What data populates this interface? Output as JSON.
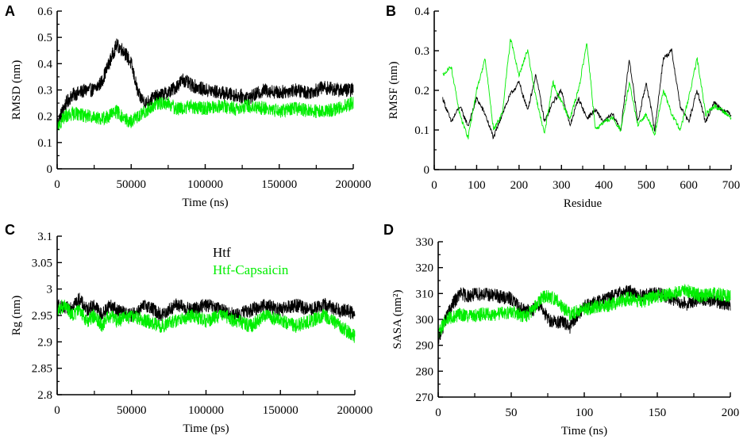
{
  "figure": {
    "colors": {
      "htf": "#000000",
      "htf_capsaicin": "#00ee00",
      "axis": "#000000"
    },
    "legend": {
      "htf": "Htf",
      "htf_capsaicin": "Htf-Capsaicin"
    }
  },
  "chart_data": [
    {
      "panel": "A",
      "type": "line",
      "xlabel": "Time (ns)",
      "ylabel": "RMSD (nm)",
      "xlim": [
        0,
        200000
      ],
      "ylim": [
        0,
        0.6
      ],
      "xticks": [
        0,
        50000,
        100000,
        150000,
        200000
      ],
      "xtick_labels": [
        "0",
        "50000",
        "100000",
        "150000",
        "200000"
      ],
      "yticks": [
        0,
        0.1,
        0.2,
        0.3,
        0.4,
        0.5,
        0.6
      ],
      "ytick_labels": [
        "0",
        "0.1",
        "0.2",
        "0.3",
        "0.4",
        "0.5",
        "0.6"
      ],
      "series": [
        {
          "name": "Htf",
          "x": [
            0,
            5000,
            10000,
            15000,
            20000,
            25000,
            30000,
            35000,
            40000,
            45000,
            50000,
            55000,
            60000,
            65000,
            70000,
            75000,
            80000,
            85000,
            90000,
            95000,
            100000,
            110000,
            120000,
            130000,
            140000,
            150000,
            160000,
            170000,
            180000,
            190000,
            200000
          ],
          "y": [
            0.17,
            0.24,
            0.28,
            0.29,
            0.3,
            0.3,
            0.33,
            0.4,
            0.47,
            0.45,
            0.4,
            0.28,
            0.25,
            0.27,
            0.28,
            0.29,
            0.31,
            0.34,
            0.32,
            0.31,
            0.3,
            0.29,
            0.28,
            0.27,
            0.3,
            0.29,
            0.3,
            0.29,
            0.31,
            0.3,
            0.3
          ]
        },
        {
          "name": "Htf-Capsaicin",
          "x": [
            0,
            5000,
            10000,
            15000,
            20000,
            25000,
            30000,
            35000,
            40000,
            45000,
            50000,
            55000,
            60000,
            65000,
            70000,
            75000,
            80000,
            85000,
            90000,
            95000,
            100000,
            110000,
            120000,
            130000,
            140000,
            150000,
            160000,
            170000,
            180000,
            190000,
            200000
          ],
          "y": [
            0.16,
            0.2,
            0.21,
            0.21,
            0.2,
            0.2,
            0.19,
            0.2,
            0.22,
            0.19,
            0.18,
            0.2,
            0.22,
            0.24,
            0.25,
            0.25,
            0.23,
            0.23,
            0.24,
            0.23,
            0.23,
            0.24,
            0.23,
            0.24,
            0.23,
            0.22,
            0.23,
            0.22,
            0.22,
            0.23,
            0.25
          ]
        }
      ]
    },
    {
      "panel": "B",
      "type": "line",
      "xlabel": "Residue",
      "ylabel": "RMSF (nm)",
      "xlim": [
        0,
        700
      ],
      "ylim": [
        0,
        0.4
      ],
      "xticks": [
        0,
        100,
        200,
        300,
        400,
        500,
        600,
        700
      ],
      "xtick_labels": [
        "0",
        "100",
        "200",
        "300",
        "400",
        "500",
        "600",
        "700"
      ],
      "yticks": [
        0,
        0.1,
        0.2,
        0.3,
        0.4
      ],
      "ytick_labels": [
        "0",
        "0.1",
        "0.2",
        "0.3",
        "0.4"
      ],
      "series": [
        {
          "name": "Htf",
          "x": [
            20,
            40,
            60,
            80,
            100,
            120,
            140,
            160,
            180,
            200,
            220,
            240,
            260,
            280,
            300,
            320,
            340,
            360,
            380,
            400,
            420,
            440,
            460,
            480,
            500,
            520,
            540,
            560,
            580,
            600,
            620,
            640,
            660,
            680,
            700
          ],
          "y": [
            0.18,
            0.12,
            0.16,
            0.11,
            0.18,
            0.14,
            0.08,
            0.14,
            0.19,
            0.22,
            0.15,
            0.24,
            0.12,
            0.17,
            0.2,
            0.11,
            0.18,
            0.13,
            0.15,
            0.12,
            0.14,
            0.1,
            0.28,
            0.12,
            0.22,
            0.1,
            0.28,
            0.3,
            0.16,
            0.12,
            0.2,
            0.12,
            0.17,
            0.15,
            0.14
          ]
        },
        {
          "name": "Htf-Capsaicin",
          "x": [
            20,
            40,
            60,
            80,
            100,
            120,
            140,
            160,
            180,
            200,
            220,
            240,
            260,
            280,
            300,
            320,
            340,
            360,
            380,
            400,
            420,
            440,
            460,
            480,
            500,
            520,
            540,
            560,
            580,
            600,
            620,
            640,
            660,
            680,
            700
          ],
          "y": [
            0.24,
            0.26,
            0.14,
            0.08,
            0.2,
            0.28,
            0.1,
            0.14,
            0.33,
            0.24,
            0.3,
            0.18,
            0.09,
            0.22,
            0.17,
            0.13,
            0.2,
            0.32,
            0.1,
            0.12,
            0.13,
            0.1,
            0.22,
            0.11,
            0.14,
            0.09,
            0.2,
            0.14,
            0.1,
            0.18,
            0.28,
            0.14,
            0.16,
            0.15,
            0.13
          ]
        }
      ]
    },
    {
      "panel": "C",
      "type": "line",
      "xlabel": "Time (ps)",
      "ylabel": "Rg (nm)",
      "xlim": [
        0,
        200000
      ],
      "ylim": [
        2.8,
        3.1
      ],
      "xticks": [
        0,
        50000,
        100000,
        150000,
        200000
      ],
      "xtick_labels": [
        "0",
        "50000",
        "100000",
        "150000",
        "200000"
      ],
      "yticks": [
        2.8,
        2.85,
        2.9,
        2.95,
        3.0,
        3.05,
        3.1
      ],
      "ytick_labels": [
        "2.8",
        "2.85",
        "2.9",
        "2.95",
        "3",
        "3.05",
        "3.1"
      ],
      "series": [
        {
          "name": "Htf",
          "x": [
            0,
            5000,
            10000,
            15000,
            20000,
            25000,
            30000,
            35000,
            40000,
            50000,
            60000,
            70000,
            80000,
            90000,
            100000,
            110000,
            120000,
            130000,
            140000,
            150000,
            160000,
            170000,
            180000,
            190000,
            195000,
            200000
          ],
          "y": [
            2.97,
            2.96,
            2.97,
            2.98,
            2.96,
            2.97,
            2.95,
            2.97,
            2.96,
            2.95,
            2.97,
            2.95,
            2.97,
            2.96,
            2.97,
            2.96,
            2.95,
            2.96,
            2.97,
            2.96,
            2.97,
            2.96,
            2.97,
            2.96,
            2.96,
            2.95
          ]
        },
        {
          "name": "Htf-Capsaicin",
          "x": [
            0,
            5000,
            10000,
            15000,
            20000,
            25000,
            30000,
            35000,
            40000,
            50000,
            60000,
            70000,
            80000,
            90000,
            100000,
            110000,
            120000,
            130000,
            140000,
            150000,
            160000,
            170000,
            180000,
            190000,
            195000,
            200000
          ],
          "y": [
            2.96,
            2.97,
            2.95,
            2.96,
            2.94,
            2.95,
            2.93,
            2.95,
            2.94,
            2.95,
            2.94,
            2.93,
            2.94,
            2.95,
            2.94,
            2.95,
            2.94,
            2.93,
            2.95,
            2.94,
            2.93,
            2.94,
            2.95,
            2.93,
            2.92,
            2.91
          ]
        }
      ]
    },
    {
      "panel": "D",
      "type": "line",
      "xlabel": "Time (ns)",
      "ylabel": "SASA (nm²)",
      "xlim": [
        0,
        200
      ],
      "ylim": [
        270,
        330
      ],
      "xticks": [
        0,
        50,
        100,
        150,
        200
      ],
      "xtick_labels": [
        "0",
        "50",
        "100",
        "150",
        "200"
      ],
      "yticks": [
        270,
        280,
        290,
        300,
        310,
        320,
        330
      ],
      "ytick_labels": [
        "270",
        "280",
        "290",
        "300",
        "310",
        "320",
        "330"
      ],
      "series": [
        {
          "name": "Htf",
          "x": [
            0,
            5,
            10,
            15,
            20,
            30,
            40,
            50,
            55,
            60,
            65,
            70,
            75,
            80,
            85,
            90,
            95,
            100,
            110,
            120,
            130,
            140,
            150,
            160,
            170,
            180,
            190,
            200
          ],
          "y": [
            292,
            300,
            306,
            310,
            309,
            310,
            309,
            308,
            305,
            303,
            304,
            306,
            300,
            299,
            299,
            297,
            301,
            305,
            307,
            309,
            311,
            309,
            310,
            308,
            306,
            308,
            307,
            306
          ]
        },
        {
          "name": "Htf-Capsaicin",
          "x": [
            0,
            5,
            10,
            15,
            20,
            30,
            40,
            50,
            55,
            60,
            65,
            70,
            75,
            80,
            85,
            90,
            95,
            100,
            110,
            120,
            130,
            140,
            150,
            160,
            170,
            180,
            190,
            200
          ],
          "y": [
            294,
            300,
            301,
            302,
            301,
            302,
            302,
            303,
            302,
            301,
            304,
            308,
            309,
            308,
            305,
            302,
            303,
            304,
            305,
            306,
            308,
            307,
            309,
            310,
            311,
            309,
            310,
            309
          ]
        }
      ]
    }
  ]
}
